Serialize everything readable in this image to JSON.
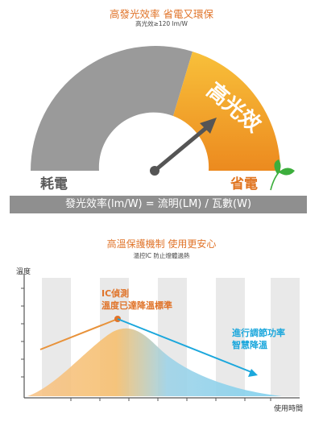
{
  "top": {
    "title": "高發光效率 省電又環保",
    "subtitle": "高光效≥120 lm/W",
    "gauge_label": "高光效",
    "left_label": "耗電",
    "right_label": "省電",
    "formula": "發光效率(lm/W) = 流明(LM) / 瓦數(W)"
  },
  "bottom": {
    "title": "高溫保護機制 使用更安心",
    "subtitle": "溫控IC 防止燈體過熱",
    "y_axis": "溫度",
    "x_axis": "使用時間",
    "annotation_left": [
      "IC偵測",
      "溫度已達降溫標準"
    ],
    "annotation_right": [
      "進行調節功率",
      "智慧降溫"
    ]
  },
  "colors": {
    "orange": "#e0742a",
    "gray": "#8f8f8f",
    "blue": "#1ba7dc",
    "green": "#3cae3c"
  }
}
